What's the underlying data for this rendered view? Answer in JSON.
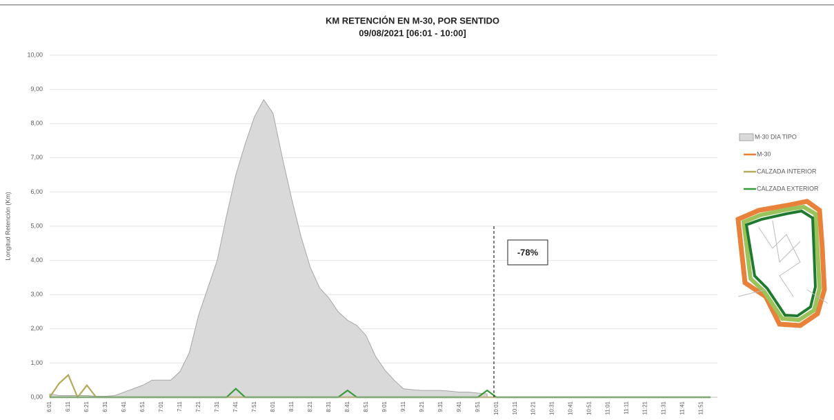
{
  "chart_data": {
    "type": "line",
    "title": "KM RETENCIÓN EN M-30, POR SENTIDO",
    "subtitle": "09/08/2021    [06:01 - 10:00]",
    "ylabel": "Longitud Retención (Km)",
    "ylim": [
      0,
      10
    ],
    "yticks": [
      {
        "value": 0,
        "label": "0,00"
      },
      {
        "value": 1,
        "label": "1,00"
      },
      {
        "value": 2,
        "label": "2,00"
      },
      {
        "value": 3,
        "label": "3,00"
      },
      {
        "value": 4,
        "label": "4,00"
      },
      {
        "value": 5,
        "label": "5,00"
      },
      {
        "value": 6,
        "label": "6,00"
      },
      {
        "value": 7,
        "label": "7,00"
      },
      {
        "value": 8,
        "label": "8,00"
      },
      {
        "value": 9,
        "label": "9,00"
      },
      {
        "value": 10,
        "label": "10,00"
      }
    ],
    "grid": true,
    "categories": [
      "6:01",
      null,
      "6:11",
      null,
      "6:21",
      null,
      "6:31",
      null,
      "6:41",
      null,
      "6:51",
      null,
      "7:01",
      null,
      "7:11",
      null,
      "7:21",
      null,
      "7:31",
      null,
      "7:41",
      null,
      "7:51",
      null,
      "8:01",
      null,
      "8:11",
      null,
      "8:21",
      null,
      "8:31",
      null,
      "8:41",
      null,
      "8:51",
      null,
      "9:01",
      null,
      "9:11",
      null,
      "9:21",
      null,
      "9:31",
      null,
      "9:41",
      null,
      "9:51",
      null,
      "10:01",
      null,
      "10:11",
      null,
      "10:21",
      null,
      "10:31",
      null,
      "10:41",
      null,
      "10:51",
      null,
      "11:01",
      null,
      "11:11",
      null,
      "11:21",
      null,
      "11:31",
      null,
      "11:41",
      null,
      "11:51",
      null
    ],
    "series": [
      {
        "name": "M-30 DIA TIPO",
        "kind": "area",
        "color": "#d9d9d9",
        "values": [
          0.1,
          0.05,
          0.05,
          0.05,
          0.05,
          0.03,
          0.03,
          0.05,
          0.15,
          0.25,
          0.35,
          0.5,
          0.5,
          0.5,
          0.75,
          1.3,
          2.4,
          3.2,
          4.0,
          5.3,
          6.5,
          7.4,
          8.2,
          8.7,
          8.3,
          7.0,
          5.8,
          4.7,
          3.8,
          3.2,
          2.9,
          2.5,
          2.25,
          2.1,
          1.8,
          1.2,
          0.8,
          0.5,
          0.25,
          0.22,
          0.2,
          0.2,
          0.2,
          0.18,
          0.15,
          0.15,
          0.12,
          0.1,
          null,
          null,
          null,
          null,
          null,
          null,
          null,
          null,
          null,
          null,
          null,
          null,
          null,
          null,
          null,
          null,
          null,
          null,
          null,
          null,
          null,
          null,
          null,
          null
        ]
      },
      {
        "name": "M-30",
        "color": "#ed7d31",
        "values": [
          0,
          0,
          0,
          0,
          0,
          0,
          0,
          0,
          0,
          0,
          0,
          0,
          0,
          0,
          0,
          0,
          0,
          0,
          0,
          0,
          0,
          0,
          0,
          0,
          0,
          0,
          0,
          0,
          0,
          0,
          0,
          0,
          0,
          0,
          0,
          0,
          0,
          0,
          0,
          0,
          0,
          0,
          0,
          0,
          0,
          0,
          0,
          0,
          0,
          0,
          0,
          0,
          0,
          0,
          0,
          0,
          0,
          0,
          0,
          0,
          0,
          0,
          0,
          0,
          0,
          0,
          0,
          0,
          0,
          0,
          0,
          0
        ]
      },
      {
        "name": "CALZADA INTERIOR",
        "color": "#b3ab5a",
        "values": [
          0,
          0.4,
          0.65,
          0,
          0.35,
          0,
          0,
          0,
          0,
          0,
          0,
          0,
          0,
          0,
          0,
          0,
          0,
          0,
          0,
          0,
          0,
          0,
          0,
          0,
          0,
          0,
          0,
          0,
          0,
          0,
          0,
          0,
          0,
          0,
          0,
          0,
          0,
          0,
          0,
          0,
          0,
          0,
          0,
          0,
          0,
          0,
          0,
          0,
          0,
          0,
          0,
          0,
          0,
          0,
          0,
          0,
          0,
          0,
          0,
          0,
          0,
          0,
          0,
          0,
          0,
          0,
          0,
          0,
          0,
          0,
          0,
          0
        ]
      },
      {
        "name": "CALZADA EXTERIOR",
        "color": "#3a9a3a",
        "values": [
          0,
          0,
          0,
          0,
          0,
          0,
          0,
          0,
          0,
          0,
          0,
          0,
          0,
          0,
          0,
          0,
          0,
          0,
          0,
          0,
          0.25,
          0,
          0,
          0,
          0,
          0,
          0,
          0,
          0,
          0,
          0,
          0,
          0.2,
          0,
          0,
          0,
          0,
          0,
          0,
          0,
          0,
          0,
          0,
          0,
          0,
          0,
          0,
          0.2,
          0,
          0,
          0,
          0,
          0,
          0,
          0,
          0,
          0,
          0,
          0,
          0,
          0,
          0,
          0,
          0,
          0,
          0,
          0,
          0,
          0,
          0,
          0,
          0
        ]
      }
    ],
    "annotation": "-78%"
  }
}
